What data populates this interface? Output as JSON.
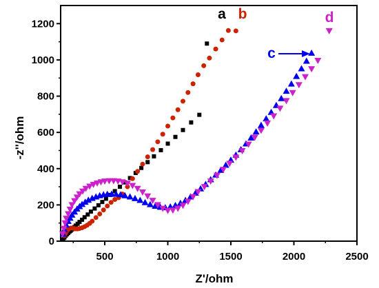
{
  "chart_data": {
    "type": "scatter",
    "xlabel": "Z'/ohm",
    "ylabel": "-z''/ohm",
    "xlim": [
      150,
      2500
    ],
    "ylim": [
      0,
      1300
    ],
    "x_ticks": [
      500,
      1000,
      1500,
      2000,
      2500
    ],
    "y_ticks": [
      0,
      200,
      400,
      600,
      800,
      1000,
      1200
    ],
    "x_tick_labels": [
      "500",
      "1000",
      "1500",
      "2000",
      "2500"
    ],
    "y_tick_labels": [
      "0",
      "200",
      "400",
      "600",
      "800",
      "1000",
      "1200"
    ],
    "grid": false,
    "series": [
      {
        "label": "a",
        "marker": "square",
        "color": "#000000",
        "x": [
          170,
          180,
          190,
          200,
          210,
          220,
          230,
          240,
          250,
          260,
          270,
          285,
          300,
          320,
          340,
          365,
          390,
          420,
          450,
          480,
          510,
          545,
          580,
          620,
          660,
          700,
          745,
          790,
          840,
          890,
          945,
          1000,
          1060,
          1120,
          1185,
          1250,
          1310
        ],
        "y": [
          10,
          20,
          30,
          38,
          45,
          52,
          58,
          64,
          70,
          78,
          86,
          96,
          106,
          118,
          132,
          147,
          163,
          180,
          198,
          216,
          234,
          255,
          276,
          300,
          324,
          348,
          376,
          404,
          436,
          468,
          502,
          538,
          575,
          613,
          655,
          697,
          1090
        ]
      },
      {
        "label": "b",
        "marker": "circle",
        "color": "#cc2200",
        "x": [
          180,
          190,
          200,
          210,
          220,
          230,
          240,
          255,
          270,
          285,
          300,
          320,
          340,
          360,
          380,
          400,
          430,
          460,
          490,
          520,
          550,
          580,
          610,
          640,
          680,
          720,
          760,
          800,
          840,
          880,
          920,
          960,
          1000,
          1040,
          1080,
          1120,
          1160,
          1200,
          1240,
          1285,
          1330,
          1380,
          1430,
          1480,
          1540
        ],
        "y": [
          30,
          45,
          57,
          65,
          70,
          72,
          72,
          70,
          68,
          68,
          70,
          74,
          80,
          88,
          98,
          110,
          130,
          150,
          172,
          194,
          214,
          230,
          240,
          260,
          300,
          345,
          385,
          425,
          465,
          505,
          548,
          590,
          635,
          680,
          725,
          772,
          820,
          868,
          918,
          968,
          1010,
          1060,
          1110,
          1162,
          1160
        ]
      },
      {
        "label": "c",
        "marker": "triangle-up",
        "color": "#0000ee",
        "x": [
          170,
          180,
          195,
          210,
          225,
          240,
          260,
          280,
          300,
          320,
          345,
          370,
          400,
          430,
          460,
          490,
          520,
          555,
          590,
          625,
          660,
          700,
          740,
          780,
          820,
          860,
          900,
          940,
          980,
          1020,
          1060,
          1100,
          1140,
          1180,
          1220,
          1260,
          1300,
          1340,
          1380,
          1420,
          1460,
          1500,
          1540,
          1580,
          1620,
          1660,
          1700,
          1740,
          1780,
          1820,
          1860,
          1900,
          1940,
          1980,
          2020,
          2060,
          2100,
          2140
        ],
        "y": [
          40,
          65,
          90,
          110,
          128,
          145,
          162,
          178,
          192,
          204,
          216,
          227,
          237,
          245,
          252,
          257,
          260,
          261,
          260,
          257,
          252,
          245,
          236,
          226,
          214,
          203,
          194,
          188,
          186,
          190,
          198,
          210,
          226,
          245,
          266,
          290,
          314,
          340,
          366,
          392,
          420,
          448,
          476,
          506,
          538,
          570,
          604,
          640,
          676,
          712,
          750,
          788,
          828,
          868,
          910,
          952,
          994,
          1038
        ]
      },
      {
        "label": "d",
        "marker": "triangle-down",
        "color": "#cc22cc",
        "x": [
          165,
          175,
          185,
          195,
          210,
          225,
          240,
          260,
          280,
          300,
          325,
          350,
          380,
          410,
          440,
          470,
          500,
          535,
          570,
          605,
          640,
          680,
          720,
          760,
          800,
          840,
          880,
          920,
          960,
          1000,
          1040,
          1080,
          1120,
          1160,
          1200,
          1240,
          1290,
          1340,
          1390,
          1440,
          1490,
          1540,
          1590,
          1640,
          1690,
          1740,
          1790,
          1840,
          1890,
          1940,
          1990,
          2040,
          2090,
          2140,
          2190,
          2280
        ],
        "y": [
          40,
          70,
          100,
          125,
          150,
          175,
          200,
          222,
          242,
          260,
          275,
          290,
          302,
          312,
          320,
          326,
          330,
          332,
          332,
          330,
          326,
          318,
          306,
          290,
          270,
          248,
          224,
          200,
          180,
          168,
          170,
          180,
          196,
          218,
          244,
          272,
          300,
          330,
          362,
          395,
          428,
          462,
          498,
          534,
          572,
          610,
          650,
          690,
          732,
          774,
          818,
          862,
          906,
          950,
          996,
          1160
        ]
      }
    ],
    "annotations": [
      {
        "text": "a",
        "color": "#000000"
      },
      {
        "text": "b",
        "color": "#cc2200"
      },
      {
        "text": "c",
        "color": "#0000ee"
      },
      {
        "text": "d",
        "color": "#cc22cc"
      }
    ]
  }
}
